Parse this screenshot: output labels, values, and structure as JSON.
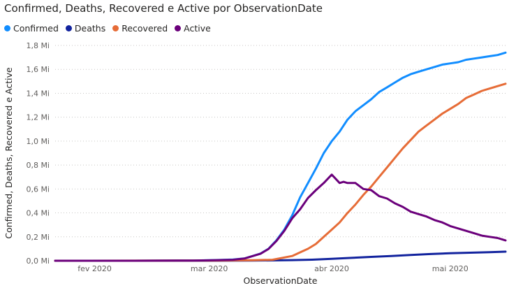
{
  "chart_data": {
    "type": "line",
    "title": "Confirmed, Deaths, Recovered e Active por ObservationDate",
    "xlabel": "ObservationDate",
    "ylabel": "Confirmed, Deaths, Recovered e Active",
    "ylim": [
      0,
      1.8
    ],
    "y_unit": "Mi",
    "yticks": [
      "0,0 Mi",
      "0,2 Mi",
      "0,4 Mi",
      "0,6 Mi",
      "0,8 Mi",
      "1,0 Mi",
      "1,2 Mi",
      "1,4 Mi",
      "1,6 Mi",
      "1,8 Mi"
    ],
    "xticks": [
      "fev 2020",
      "mar 2020",
      "abr 2020",
      "mai 2020"
    ],
    "xticks_days": [
      10,
      39,
      70,
      100
    ],
    "x_unit": "dias desde 22 jan 2020",
    "xlim": [
      0,
      114
    ],
    "grid": true,
    "legend_position": "top-left",
    "series": [
      {
        "name": "Confirmed",
        "color": "#118DFF",
        "x": [
          0,
          20,
          30,
          35,
          40,
          45,
          48,
          50,
          52,
          54,
          56,
          58,
          60,
          62,
          64,
          66,
          68,
          70,
          72,
          74,
          76,
          78,
          80,
          82,
          84,
          86,
          88,
          90,
          92,
          94,
          96,
          98,
          100,
          102,
          104,
          106,
          108,
          110,
          112,
          114
        ],
        "y": [
          0,
          0,
          0.001,
          0.002,
          0.005,
          0.01,
          0.02,
          0.04,
          0.06,
          0.1,
          0.17,
          0.26,
          0.38,
          0.53,
          0.65,
          0.77,
          0.9,
          1.0,
          1.08,
          1.18,
          1.25,
          1.3,
          1.35,
          1.41,
          1.45,
          1.49,
          1.53,
          1.56,
          1.58,
          1.6,
          1.62,
          1.64,
          1.65,
          1.66,
          1.68,
          1.69,
          1.7,
          1.71,
          1.72,
          1.74
        ]
      },
      {
        "name": "Deaths",
        "color": "#12239E",
        "x": [
          0,
          40,
          50,
          60,
          65,
          70,
          75,
          80,
          85,
          90,
          95,
          100,
          105,
          110,
          114
        ],
        "y": [
          0,
          0.0002,
          0.001,
          0.005,
          0.009,
          0.016,
          0.024,
          0.032,
          0.04,
          0.048,
          0.056,
          0.063,
          0.067,
          0.072,
          0.076
        ]
      },
      {
        "name": "Recovered",
        "color": "#E66C37",
        "x": [
          0,
          30,
          40,
          50,
          55,
          60,
          62,
          64,
          66,
          68,
          70,
          72,
          74,
          76,
          78,
          80,
          82,
          84,
          86,
          88,
          90,
          92,
          94,
          96,
          98,
          100,
          102,
          104,
          106,
          108,
          110,
          112,
          114
        ],
        "y": [
          0,
          0.001,
          0.002,
          0.004,
          0.008,
          0.04,
          0.07,
          0.1,
          0.14,
          0.2,
          0.26,
          0.32,
          0.4,
          0.47,
          0.55,
          0.62,
          0.7,
          0.78,
          0.86,
          0.94,
          1.01,
          1.08,
          1.13,
          1.18,
          1.23,
          1.27,
          1.31,
          1.36,
          1.39,
          1.42,
          1.44,
          1.46,
          1.48
        ]
      },
      {
        "name": "Active",
        "color": "#6B007B",
        "x": [
          0,
          20,
          35,
          40,
          45,
          48,
          50,
          52,
          54,
          56,
          58,
          60,
          62,
          64,
          66,
          68,
          70,
          72,
          73,
          74,
          76,
          78,
          80,
          82,
          84,
          86,
          88,
          90,
          92,
          94,
          96,
          98,
          100,
          102,
          104,
          106,
          108,
          110,
          112,
          114
        ],
        "y": [
          0,
          0,
          0.002,
          0.004,
          0.008,
          0.019,
          0.039,
          0.059,
          0.098,
          0.165,
          0.25,
          0.355,
          0.43,
          0.525,
          0.59,
          0.65,
          0.72,
          0.65,
          0.66,
          0.65,
          0.65,
          0.6,
          0.59,
          0.54,
          0.52,
          0.48,
          0.45,
          0.41,
          0.39,
          0.37,
          0.34,
          0.32,
          0.29,
          0.27,
          0.25,
          0.23,
          0.21,
          0.2,
          0.19,
          0.17
        ]
      }
    ]
  }
}
